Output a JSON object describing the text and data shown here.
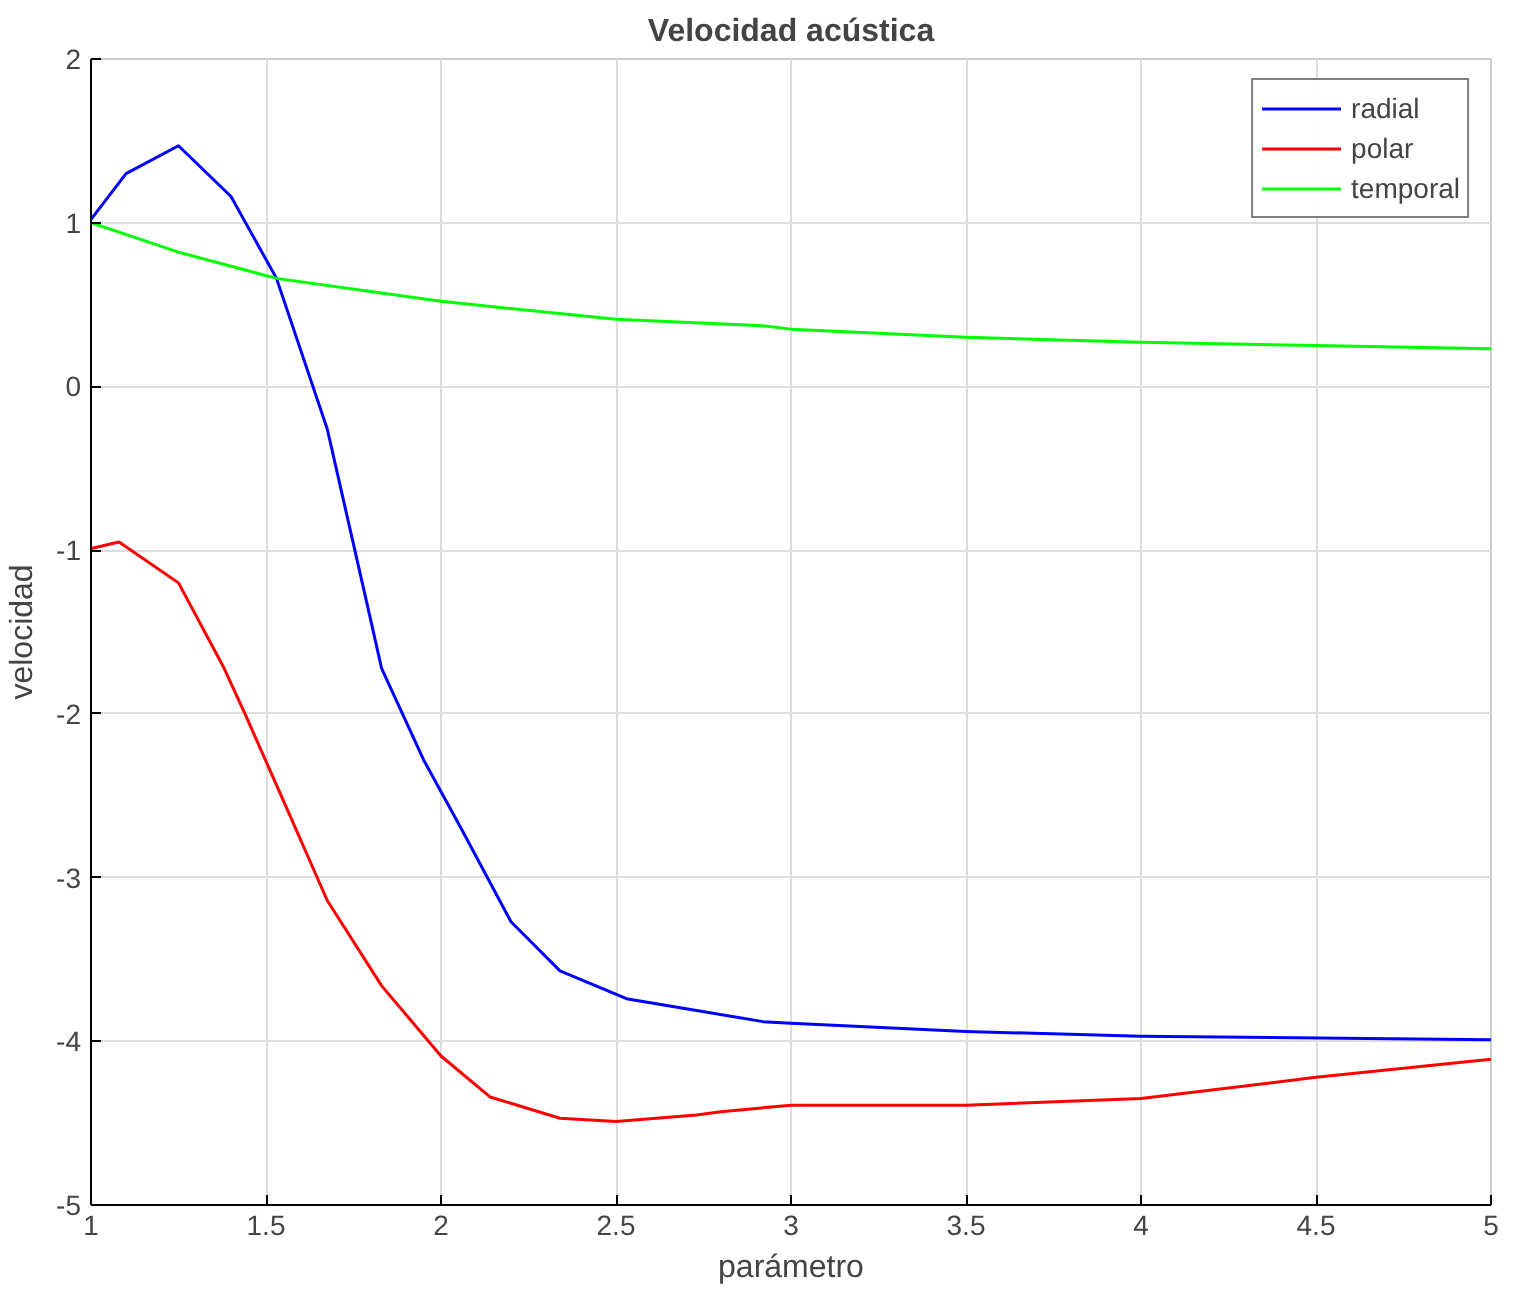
{
  "chart_data": {
    "type": "line",
    "title": "Velocidad acústica",
    "xlabel": "parámetro",
    "ylabel": "velocidad",
    "xlim": [
      1,
      5
    ],
    "ylim": [
      -5,
      2
    ],
    "xticks": [
      1,
      1.5,
      2,
      2.5,
      3,
      3.5,
      4,
      4.5,
      5
    ],
    "yticks": [
      -5,
      -4,
      -3,
      -2,
      -1,
      0,
      1,
      2
    ],
    "grid": true,
    "legend": "top right",
    "marker": "none",
    "line_style": "solid",
    "series": [
      {
        "name": "radial",
        "color": "#0000ff",
        "x": [
          1,
          1.1,
          1.25,
          1.4,
          1.53,
          1.675,
          1.79,
          1.83,
          1.95,
          2.06,
          2.2,
          2.34,
          2.53,
          2.92,
          3,
          3.5,
          4,
          5
        ],
        "values": [
          1.02,
          1.3,
          1.47,
          1.16,
          0.66,
          -0.26,
          -1.34,
          -1.72,
          -2.28,
          -2.71,
          -3.27,
          -3.57,
          -3.74,
          -3.88,
          -3.89,
          -3.94,
          -3.97,
          -3.99
        ]
      },
      {
        "name": "polar",
        "color": "#ff0000",
        "x": [
          1,
          1.08,
          1.25,
          1.38,
          1.44,
          1.56,
          1.675,
          1.83,
          2,
          2.14,
          2.34,
          2.5,
          2.73,
          2.8,
          3,
          3.5,
          4,
          4.5,
          5
        ],
        "values": [
          -0.99,
          -0.95,
          -1.2,
          -1.72,
          -2.0,
          -2.58,
          -3.14,
          -3.66,
          -4.09,
          -4.34,
          -4.47,
          -4.49,
          -4.45,
          -4.43,
          -4.39,
          -4.39,
          -4.35,
          -4.22,
          -4.11
        ]
      },
      {
        "name": "temporal",
        "color": "#00ff00",
        "x": [
          1,
          1.25,
          1.53,
          2,
          2.5,
          2.92,
          3,
          3.5,
          4,
          4.5,
          5
        ],
        "values": [
          1.0,
          0.82,
          0.66,
          0.52,
          0.41,
          0.37,
          0.35,
          0.3,
          0.27,
          0.25,
          0.23
        ]
      }
    ]
  }
}
